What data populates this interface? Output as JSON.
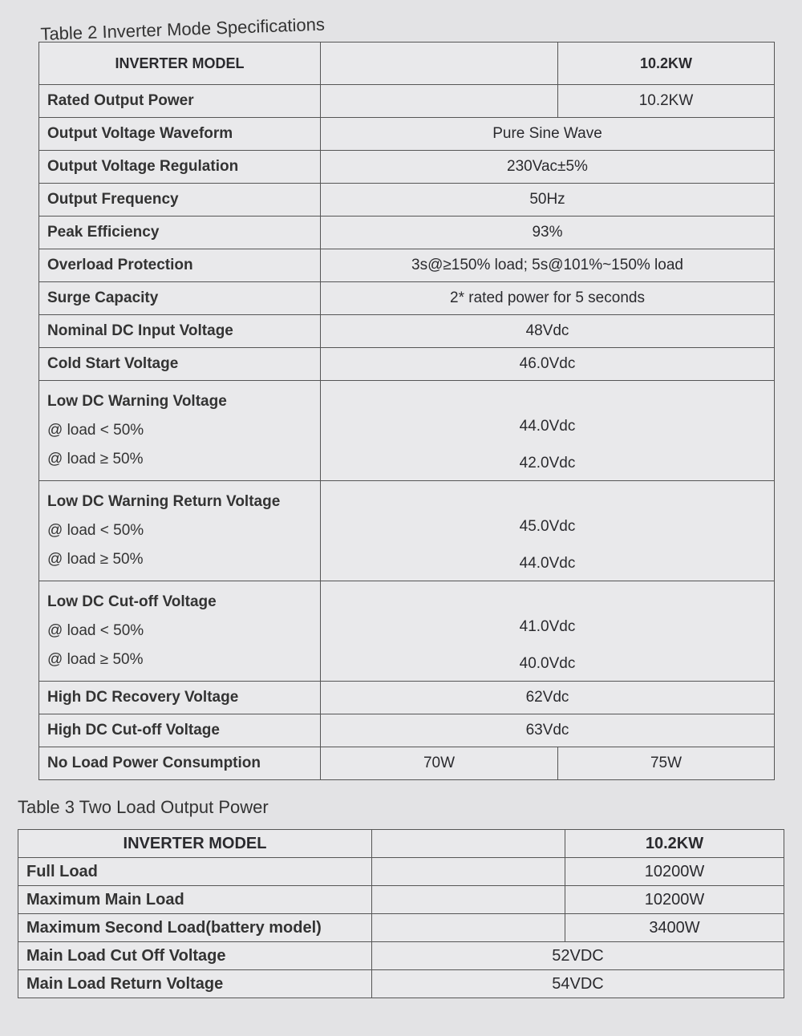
{
  "table2": {
    "caption": "Table 2 Inverter Mode Specifications",
    "header": {
      "label": "INVERTER MODEL",
      "model": "10.2KW"
    },
    "rows": [
      {
        "label": "Rated Output Power",
        "values": [
          "",
          "10.2KW"
        ]
      },
      {
        "label": "Output Voltage Waveform",
        "value": "Pure Sine Wave"
      },
      {
        "label": "Output Voltage Regulation",
        "value": "230Vac±5%"
      },
      {
        "label": "Output Frequency",
        "value": "50Hz"
      },
      {
        "label": "Peak Efficiency",
        "value": "93%"
      },
      {
        "label": "Overload Protection",
        "value": "3s@≥150% load; 5s@101%~150% load"
      },
      {
        "label": "Surge Capacity",
        "value": "2* rated power for 5 seconds"
      },
      {
        "label": "Nominal DC Input Voltage",
        "value": "48Vdc"
      },
      {
        "label": "Cold Start Voltage",
        "value": "46.0Vdc"
      },
      {
        "label": "Low DC Warning Voltage",
        "sub": [
          {
            "label": "@ load < 50%",
            "value": "44.0Vdc"
          },
          {
            "label": "@ load ≥ 50%",
            "value": "42.0Vdc"
          }
        ]
      },
      {
        "label": "Low DC Warning Return Voltage",
        "sub": [
          {
            "label": "@ load < 50%",
            "value": "45.0Vdc"
          },
          {
            "label": "@ load ≥ 50%",
            "value": "44.0Vdc"
          }
        ]
      },
      {
        "label": "Low DC Cut-off Voltage",
        "sub": [
          {
            "label": "@ load < 50%",
            "value": "41.0Vdc"
          },
          {
            "label": "@ load ≥ 50%",
            "value": "40.0Vdc"
          }
        ]
      },
      {
        "label": "High DC Recovery Voltage",
        "value": "62Vdc"
      },
      {
        "label": "High DC Cut-off Voltage",
        "value": "63Vdc"
      },
      {
        "label": "No Load Power Consumption",
        "values": [
          "70W",
          "75W"
        ]
      }
    ]
  },
  "table3": {
    "caption": "Table 3 Two Load Output Power",
    "header": {
      "label": "INVERTER MODEL",
      "model": "10.2KW"
    },
    "rows": [
      {
        "label": "Full Load",
        "values": [
          "",
          "10200W"
        ]
      },
      {
        "label": "Maximum Main Load",
        "values": [
          "",
          "10200W"
        ]
      },
      {
        "label": "Maximum Second Load(battery model)",
        "values": [
          "",
          "3400W"
        ]
      },
      {
        "label": "Main Load Cut Off  Voltage",
        "value": "52VDC"
      },
      {
        "label": "Main Load Return  Voltage",
        "value": "54VDC"
      }
    ]
  }
}
